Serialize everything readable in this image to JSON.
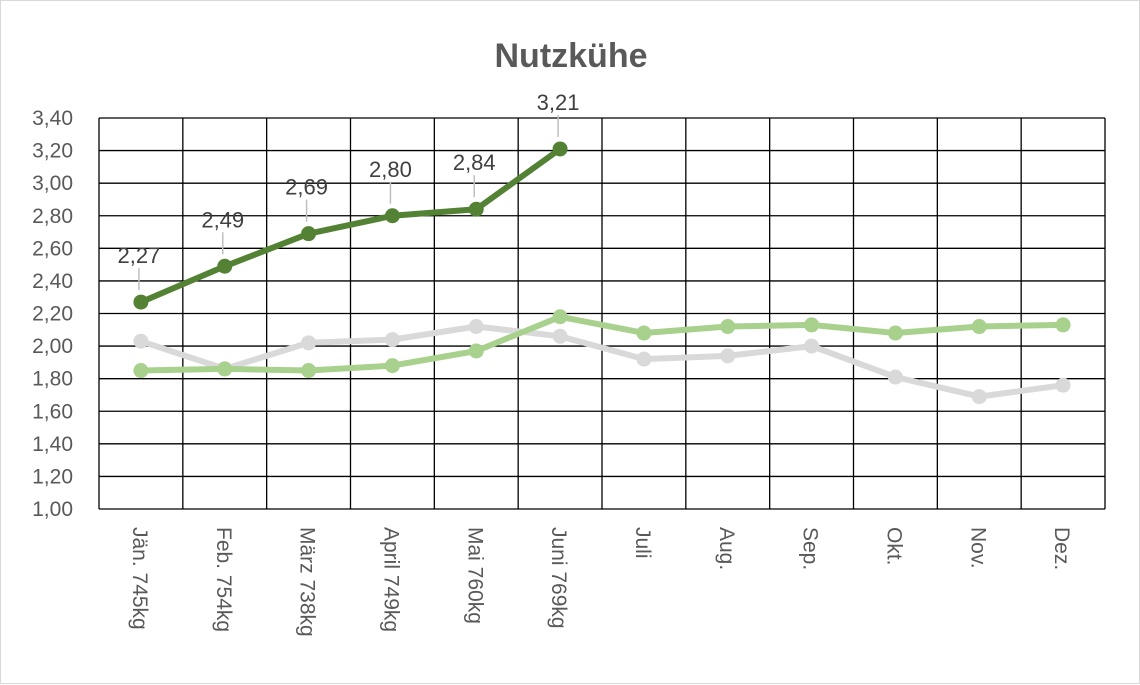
{
  "chart_data": {
    "type": "line",
    "title": "Nutzkühe",
    "categories": [
      "Jän.   745kg",
      "Feb.   754kg",
      "März 738kg",
      "April  749kg",
      "Mai   760kg",
      "Juni   769kg",
      "Juli",
      "Aug.",
      "Sep.",
      "Okt.",
      "Nov.",
      "Dez."
    ],
    "y_tick_labels": [
      "1,00",
      "1,20",
      "1,40",
      "1,60",
      "1,80",
      "2,00",
      "2,20",
      "2,40",
      "2,60",
      "2,80",
      "3,00",
      "3,20",
      "3,40"
    ],
    "ylim": [
      1.0,
      3.4
    ],
    "grid": true,
    "legend": "none",
    "series": [
      {
        "color": "#d9d9d9",
        "values": [
          2.03,
          1.86,
          2.02,
          2.04,
          2.12,
          2.06,
          1.92,
          1.94,
          2.0,
          1.81,
          1.69,
          1.76
        ],
        "data_labels": null
      },
      {
        "color": "#a9d18e",
        "values": [
          1.85,
          1.86,
          1.85,
          1.88,
          1.97,
          2.18,
          2.08,
          2.12,
          2.13,
          2.08,
          2.12,
          2.13
        ],
        "data_labels": null
      },
      {
        "color": "#548235",
        "values": [
          2.27,
          2.49,
          2.69,
          2.8,
          2.84,
          3.21,
          null,
          null,
          null,
          null,
          null,
          null
        ],
        "data_labels": [
          "2,27",
          "2,49",
          "2,69",
          "2,80",
          "2,84",
          "3,21",
          null,
          null,
          null,
          null,
          null,
          null
        ]
      }
    ]
  }
}
